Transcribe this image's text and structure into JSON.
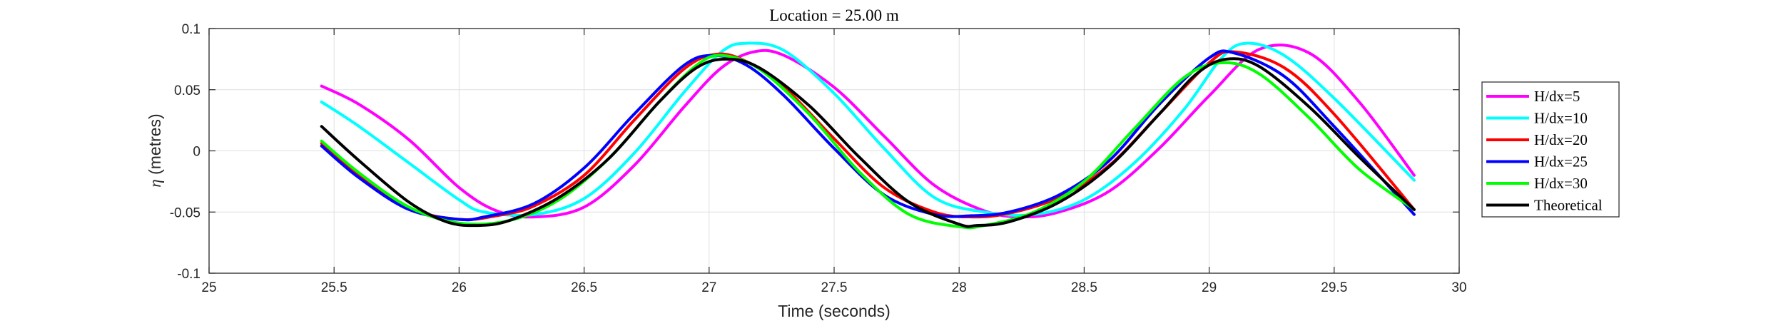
{
  "chart_data": {
    "type": "line",
    "title": "Location = 25.00 m",
    "xlabel": "Time (seconds)",
    "ylabel_symbol": "η",
    "ylabel_text": " (metres)",
    "xlim": [
      25,
      30
    ],
    "ylim": [
      -0.1,
      0.1
    ],
    "xticks": [
      25,
      25.5,
      26,
      26.5,
      27,
      27.5,
      28,
      28.5,
      29,
      29.5,
      30
    ],
    "xtick_labels": [
      "25",
      "25.5",
      "26",
      "26.5",
      "27",
      "27.5",
      "28",
      "28.5",
      "29",
      "29.5",
      "30"
    ],
    "yticks": [
      -0.1,
      -0.05,
      0,
      0.05,
      0.1
    ],
    "ytick_labels": [
      "-0.1",
      "-0.05",
      "0",
      "0.05",
      "0.1"
    ],
    "grid": true,
    "legend_position": "outside-right",
    "series": [
      {
        "name": "H/dx=5",
        "color": "#ff00ff",
        "x": [
          25.45,
          25.6,
          25.8,
          26.0,
          26.15,
          26.3,
          26.5,
          26.7,
          26.9,
          27.05,
          27.18,
          27.3,
          27.5,
          27.7,
          27.9,
          28.1,
          28.25,
          28.4,
          28.6,
          28.8,
          29.0,
          29.2,
          29.4,
          29.6,
          29.82
        ],
        "values": [
          0.053,
          0.038,
          0.009,
          -0.03,
          -0.049,
          -0.054,
          -0.046,
          -0.012,
          0.036,
          0.068,
          0.081,
          0.078,
          0.052,
          0.012,
          -0.028,
          -0.049,
          -0.054,
          -0.05,
          -0.033,
          0.002,
          0.045,
          0.083,
          0.08,
          0.04,
          -0.02
        ]
      },
      {
        "name": "H/dx=10",
        "color": "#00ffff",
        "x": [
          25.45,
          25.6,
          25.8,
          26.0,
          26.1,
          26.3,
          26.5,
          26.7,
          26.9,
          27.05,
          27.15,
          27.3,
          27.5,
          27.7,
          27.9,
          28.1,
          28.3,
          28.5,
          28.7,
          28.9,
          29.05,
          29.15,
          29.3,
          29.5,
          29.82
        ],
        "values": [
          0.04,
          0.02,
          -0.01,
          -0.04,
          -0.05,
          -0.052,
          -0.039,
          -0.002,
          0.048,
          0.081,
          0.088,
          0.082,
          0.047,
          0.002,
          -0.038,
          -0.05,
          -0.052,
          -0.04,
          -0.01,
          0.034,
          0.076,
          0.088,
          0.078,
          0.043,
          -0.024
        ]
      },
      {
        "name": "H/dx=20",
        "color": "#ff0000",
        "x": [
          25.45,
          25.6,
          25.8,
          26.0,
          26.15,
          26.3,
          26.5,
          26.7,
          26.9,
          27.03,
          27.15,
          27.3,
          27.5,
          27.7,
          27.9,
          28.05,
          28.2,
          28.4,
          28.6,
          28.8,
          29.0,
          29.1,
          29.3,
          29.5,
          29.82
        ],
        "values": [
          0.006,
          -0.02,
          -0.047,
          -0.056,
          -0.053,
          -0.045,
          -0.02,
          0.025,
          0.067,
          0.079,
          0.073,
          0.052,
          0.01,
          -0.03,
          -0.05,
          -0.054,
          -0.051,
          -0.038,
          -0.012,
          0.03,
          0.072,
          0.081,
          0.068,
          0.03,
          -0.048
        ]
      },
      {
        "name": "H/dx=25",
        "color": "#0000ff",
        "x": [
          25.45,
          25.6,
          25.8,
          26.0,
          26.1,
          26.3,
          26.5,
          26.7,
          26.9,
          27.02,
          27.15,
          27.3,
          27.5,
          27.7,
          27.9,
          28.05,
          28.2,
          28.4,
          28.6,
          28.8,
          29.0,
          29.1,
          29.3,
          29.5,
          29.82
        ],
        "values": [
          0.004,
          -0.022,
          -0.048,
          -0.056,
          -0.054,
          -0.043,
          -0.014,
          0.03,
          0.07,
          0.078,
          0.07,
          0.045,
          0.002,
          -0.036,
          -0.052,
          -0.053,
          -0.05,
          -0.036,
          -0.008,
          0.038,
          0.076,
          0.08,
          0.061,
          0.02,
          -0.052
        ]
      },
      {
        "name": "H/dx=30",
        "color": "#00ff00",
        "x": [
          25.45,
          25.6,
          25.8,
          26.0,
          26.2,
          26.4,
          26.6,
          26.8,
          26.95,
          27.05,
          27.2,
          27.4,
          27.6,
          27.8,
          28.0,
          28.1,
          28.3,
          28.5,
          28.7,
          28.9,
          29.05,
          29.2,
          29.4,
          29.6,
          29.82
        ],
        "values": [
          0.008,
          -0.018,
          -0.046,
          -0.059,
          -0.057,
          -0.04,
          -0.006,
          0.04,
          0.07,
          0.078,
          0.067,
          0.03,
          -0.017,
          -0.052,
          -0.062,
          -0.061,
          -0.05,
          -0.025,
          0.018,
          0.06,
          0.072,
          0.063,
          0.027,
          -0.015,
          -0.048
        ]
      },
      {
        "name": "Theoretical",
        "color": "#000000",
        "x": [
          25.45,
          25.6,
          25.8,
          25.95,
          26.07,
          26.2,
          26.4,
          26.6,
          26.8,
          26.95,
          27.07,
          27.2,
          27.4,
          27.6,
          27.8,
          28.0,
          28.07,
          28.2,
          28.4,
          28.6,
          28.8,
          28.95,
          29.07,
          29.2,
          29.4,
          29.6,
          29.82
        ],
        "values": [
          0.02,
          -0.008,
          -0.042,
          -0.058,
          -0.061,
          -0.057,
          -0.038,
          -0.006,
          0.04,
          0.068,
          0.075,
          0.068,
          0.037,
          -0.005,
          -0.042,
          -0.06,
          -0.061,
          -0.058,
          -0.042,
          -0.013,
          0.03,
          0.063,
          0.075,
          0.069,
          0.036,
          -0.005,
          -0.048
        ]
      }
    ]
  }
}
